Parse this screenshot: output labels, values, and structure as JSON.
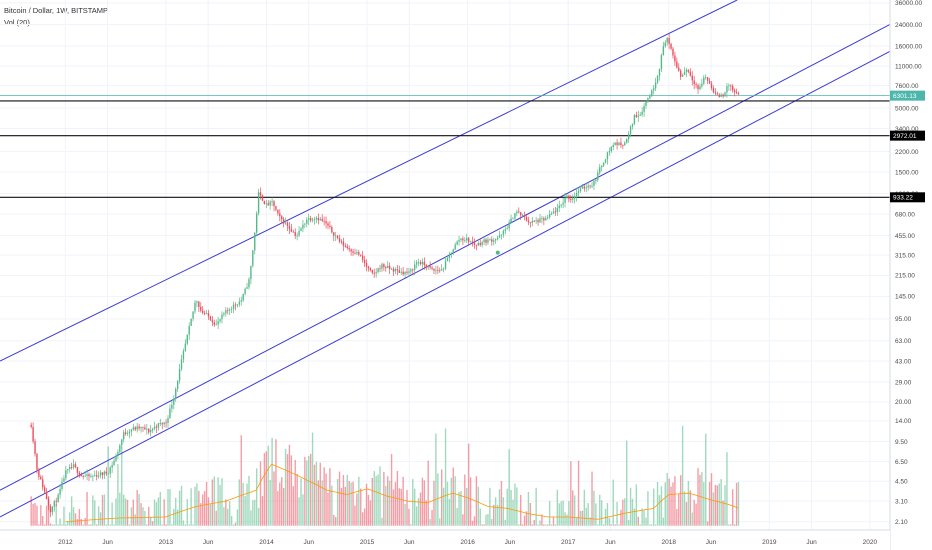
{
  "header": {
    "symbol_line": "Bitcoin / Dollar, 1W, BITSTAMP",
    "volume_line": "Vol (20)"
  },
  "colors": {
    "up": "#53b987",
    "down": "#eb4d5c",
    "channel": "#3b3bd6",
    "level": "#111111",
    "current_price": "#4db6ac",
    "volume_ma": "#ff9800",
    "grid": "#f0f3fa"
  },
  "chart_data": {
    "type": "candlestick",
    "y_scale": "log",
    "ylim": [
      1.8,
      38000
    ],
    "xlim": [
      2011.35,
      2020.2
    ],
    "y_ticks": [
      "36000.00",
      "24000.00",
      "16000.00",
      "11000.00",
      "7600.00",
      "5000.00",
      "3400.00",
      "2200.00",
      "1500.00",
      "1000.00",
      "680.00",
      "455.00",
      "315.00",
      "215.00",
      "145.00",
      "95.00",
      "63.00",
      "43.00",
      "29.00",
      "20.00",
      "14.00",
      "9.50",
      "6.50",
      "4.50",
      "3.10",
      "2.10"
    ],
    "x_ticks": [
      {
        "label": "2012",
        "x": 2012.0
      },
      {
        "label": "Jun",
        "x": 2012.42
      },
      {
        "label": "2013",
        "x": 2013.0
      },
      {
        "label": "Jun",
        "x": 2013.42
      },
      {
        "label": "2014",
        "x": 2014.0
      },
      {
        "label": "Jun",
        "x": 2014.42
      },
      {
        "label": "2015",
        "x": 2015.0
      },
      {
        "label": "Jun",
        "x": 2015.42
      },
      {
        "label": "2016",
        "x": 2016.0
      },
      {
        "label": "Jun",
        "x": 2016.42
      },
      {
        "label": "2017",
        "x": 2017.0
      },
      {
        "label": "Jun",
        "x": 2017.42
      },
      {
        "label": "2018",
        "x": 2018.0
      },
      {
        "label": "Jun",
        "x": 2018.42
      },
      {
        "label": "2019",
        "x": 2019.0
      },
      {
        "label": "Jun",
        "x": 2019.42
      },
      {
        "label": "2020",
        "x": 2020.0
      }
    ],
    "price_path": [
      [
        2011.66,
        13
      ],
      [
        2011.72,
        5.5
      ],
      [
        2011.78,
        4.0
      ],
      [
        2011.85,
        2.6
      ],
      [
        2011.93,
        3.4
      ],
      [
        2012.0,
        5.3
      ],
      [
        2012.08,
        6.0
      ],
      [
        2012.16,
        5.0
      ],
      [
        2012.25,
        4.9
      ],
      [
        2012.33,
        5.1
      ],
      [
        2012.42,
        5.3
      ],
      [
        2012.5,
        7.0
      ],
      [
        2012.58,
        11.0
      ],
      [
        2012.66,
        12.0
      ],
      [
        2012.75,
        12.3
      ],
      [
        2012.83,
        11.5
      ],
      [
        2012.92,
        13.0
      ],
      [
        2013.0,
        13.5
      ],
      [
        2013.08,
        22
      ],
      [
        2013.16,
        45
      ],
      [
        2013.25,
        93
      ],
      [
        2013.3,
        140
      ],
      [
        2013.35,
        110
      ],
      [
        2013.42,
        100
      ],
      [
        2013.5,
        85
      ],
      [
        2013.58,
        105
      ],
      [
        2013.66,
        120
      ],
      [
        2013.75,
        135
      ],
      [
        2013.83,
        200
      ],
      [
        2013.88,
        450
      ],
      [
        2013.92,
        1000
      ],
      [
        2013.96,
        900
      ],
      [
        2014.0,
        800
      ],
      [
        2014.06,
        850
      ],
      [
        2014.12,
        650
      ],
      [
        2014.2,
        560
      ],
      [
        2014.3,
        450
      ],
      [
        2014.4,
        620
      ],
      [
        2014.5,
        640
      ],
      [
        2014.58,
        580
      ],
      [
        2014.66,
        480
      ],
      [
        2014.75,
        390
      ],
      [
        2014.83,
        350
      ],
      [
        2014.92,
        320
      ],
      [
        2015.0,
        250
      ],
      [
        2015.06,
        215
      ],
      [
        2015.14,
        260
      ],
      [
        2015.25,
        240
      ],
      [
        2015.33,
        230
      ],
      [
        2015.42,
        225
      ],
      [
        2015.5,
        280
      ],
      [
        2015.58,
        260
      ],
      [
        2015.66,
        235
      ],
      [
        2015.75,
        240
      ],
      [
        2015.83,
        330
      ],
      [
        2015.92,
        430
      ],
      [
        2016.0,
        420
      ],
      [
        2016.08,
        380
      ],
      [
        2016.16,
        410
      ],
      [
        2016.25,
        420
      ],
      [
        2016.33,
        450
      ],
      [
        2016.42,
        580
      ],
      [
        2016.48,
        720
      ],
      [
        2016.55,
        650
      ],
      [
        2016.62,
        580
      ],
      [
        2016.7,
        600
      ],
      [
        2016.78,
        620
      ],
      [
        2016.85,
        700
      ],
      [
        2016.92,
        780
      ],
      [
        2016.98,
        960
      ],
      [
        2017.03,
        900
      ],
      [
        2017.1,
        1050
      ],
      [
        2017.18,
        1150
      ],
      [
        2017.25,
        1200
      ],
      [
        2017.33,
        1700
      ],
      [
        2017.4,
        2200
      ],
      [
        2017.46,
        2600
      ],
      [
        2017.52,
        2500
      ],
      [
        2017.58,
        2700
      ],
      [
        2017.66,
        4300
      ],
      [
        2017.72,
        4500
      ],
      [
        2017.78,
        5800
      ],
      [
        2017.84,
        7000
      ],
      [
        2017.9,
        10000
      ],
      [
        2017.95,
        16500
      ],
      [
        2017.98,
        19000
      ],
      [
        2018.03,
        14000
      ],
      [
        2018.08,
        11000
      ],
      [
        2018.12,
        9000
      ],
      [
        2018.18,
        10500
      ],
      [
        2018.24,
        8500
      ],
      [
        2018.3,
        7000
      ],
      [
        2018.36,
        9200
      ],
      [
        2018.42,
        7500
      ],
      [
        2018.48,
        6200
      ],
      [
        2018.54,
        6400
      ],
      [
        2018.6,
        7800
      ],
      [
        2018.66,
        6500
      ],
      [
        2018.7,
        6300
      ]
    ],
    "volume_ma_path": [
      [
        2012.0,
        2.1
      ],
      [
        2012.5,
        2.25
      ],
      [
        2013.0,
        2.3
      ],
      [
        2013.3,
        2.8
      ],
      [
        2013.6,
        3.1
      ],
      [
        2013.9,
        3.8
      ],
      [
        2014.05,
        6.2
      ],
      [
        2014.2,
        5.5
      ],
      [
        2014.4,
        4.6
      ],
      [
        2014.6,
        3.8
      ],
      [
        2014.8,
        3.5
      ],
      [
        2015.0,
        3.9
      ],
      [
        2015.2,
        3.4
      ],
      [
        2015.4,
        3.1
      ],
      [
        2015.6,
        3.0
      ],
      [
        2015.85,
        3.6
      ],
      [
        2016.0,
        3.3
      ],
      [
        2016.2,
        2.8
      ],
      [
        2016.4,
        2.7
      ],
      [
        2016.6,
        2.45
      ],
      [
        2016.8,
        2.3
      ],
      [
        2017.0,
        2.3
      ],
      [
        2017.3,
        2.2
      ],
      [
        2017.6,
        2.5
      ],
      [
        2017.85,
        2.7
      ],
      [
        2018.0,
        3.5
      ],
      [
        2018.2,
        3.6
      ],
      [
        2018.4,
        3.2
      ],
      [
        2018.6,
        2.9
      ],
      [
        2018.7,
        2.7
      ]
    ],
    "channel_lines": [
      {
        "name": "upper",
        "from": [
          2011.35,
          43
        ],
        "to": [
          2018.68,
          38000
        ]
      },
      {
        "name": "middle",
        "from": [
          2011.35,
          3.8
        ],
        "to": [
          2020.2,
          24000
        ]
      },
      {
        "name": "lower",
        "from": [
          2011.35,
          2.3
        ],
        "to": [
          2020.2,
          14500
        ]
      }
    ],
    "horizontal_levels": [
      {
        "value": 5700,
        "color": "level",
        "tag": ""
      },
      {
        "value": 2972,
        "color": "level",
        "tag": "2972.01"
      },
      {
        "value": 933,
        "color": "level",
        "tag": "933.22"
      },
      {
        "value": 6301,
        "color": "current_price",
        "tag": "6301.13"
      }
    ],
    "markers": [
      {
        "x": 2016.3,
        "y": 330,
        "color": "#53b987"
      }
    ]
  }
}
